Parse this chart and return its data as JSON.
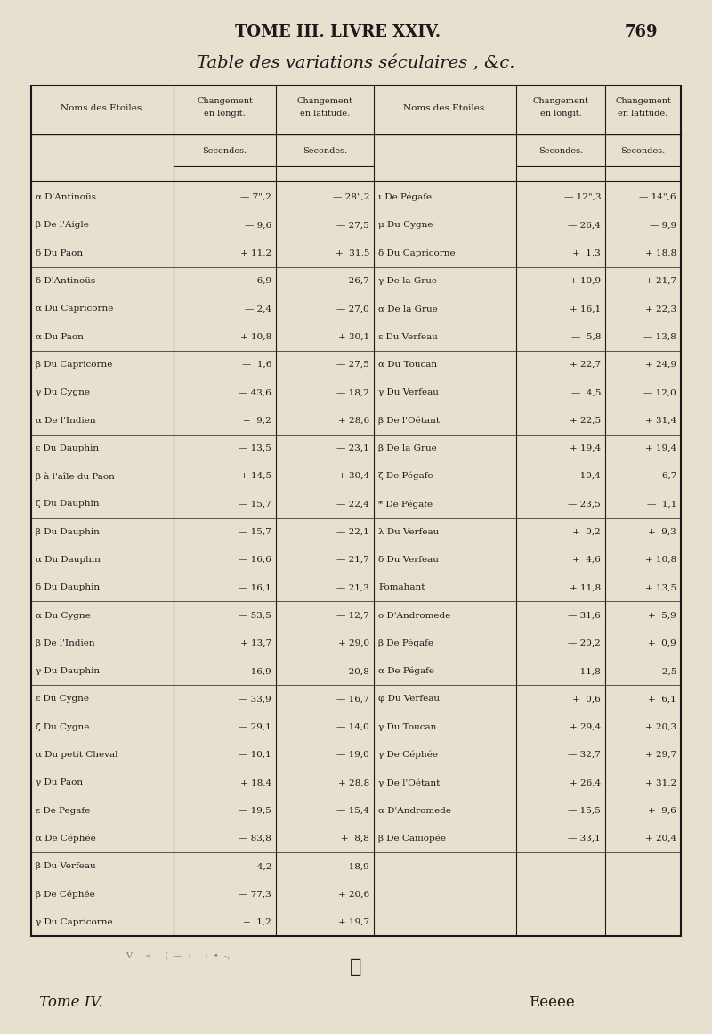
{
  "page_header": "TOME III. LIVRE XXIV.",
  "page_number": "769",
  "table_title": "Table des variations séculaires , &c.",
  "bg_color": "#e8e0ce",
  "text_color": "#1a1a1a",
  "col_headers": [
    "Noms des Etoiles.",
    "Changement\nen longit.",
    "Changement\nen latitude.",
    "Noms des Etoiles.",
    "Changement\nen longit.",
    "Changement\nen latitude."
  ],
  "col_subheaders": [
    "",
    "Secondes.",
    "Secondes.",
    "",
    "Secondes.",
    "Secondes."
  ],
  "groups": [
    {
      "left": [
        [
          "α D'Antinoüs",
          "— 7\",2",
          "— 28\",2"
        ],
        [
          "β De l'Aigle",
          "— 9,6",
          "— 27,5"
        ],
        [
          "δ Du Paon",
          "+ 11,2",
          "+  31,5"
        ]
      ],
      "right": [
        [
          "ι De Pégafe",
          "— 12\",3",
          "— 14\",6"
        ],
        [
          "μ Du Cygne",
          "— 26,4",
          "— 9,9"
        ],
        [
          "δ Du Capricorne",
          "+  1,3",
          "+ 18,8"
        ]
      ]
    },
    {
      "left": [
        [
          "δ D'Antinoüs",
          "— 6,9",
          "— 26,7"
        ],
        [
          "α Du Capricorne",
          "— 2,4",
          "— 27,0"
        ],
        [
          "α Du Paon",
          "+ 10,8",
          "+ 30,1"
        ]
      ],
      "right": [
        [
          "γ De la Grue",
          "+ 10,9",
          "+ 21,7"
        ],
        [
          "α De la Grue",
          "+ 16,1",
          "+ 22,3"
        ],
        [
          "ε Du Verfeau",
          "—  5,8",
          "— 13,8"
        ]
      ]
    },
    {
      "left": [
        [
          "β Du Capricorne",
          "—  1,6",
          "— 27,5"
        ],
        [
          "γ Du Cygne",
          "— 43,6",
          "— 18,2"
        ],
        [
          "α De l'Indien",
          "+  9,2",
          "+ 28,6"
        ]
      ],
      "right": [
        [
          "α Du Toucan",
          "+ 22,7",
          "+ 24,9"
        ],
        [
          "γ Du Verfeau",
          "—  4,5",
          "— 12,0"
        ],
        [
          "β De l'Oétant",
          "+ 22,5",
          "+ 31,4"
        ]
      ]
    },
    {
      "left": [
        [
          "ε Du Dauphin",
          "— 13,5",
          "— 23,1"
        ],
        [
          "β à l'aîle du Paon",
          "+ 14,5",
          "+ 30,4"
        ],
        [
          "ζ Du Dauphin",
          "— 15,7",
          "— 22,4"
        ]
      ],
      "right": [
        [
          "β De la Grue",
          "+ 19,4",
          "+ 19,4"
        ],
        [
          "ζ De Pégafe",
          "— 10,4",
          "—  6,7"
        ],
        [
          "* De Pégafe",
          "— 23,5",
          "—  1,1"
        ]
      ]
    },
    {
      "left": [
        [
          "β Du Dauphin",
          "— 15,7",
          "— 22,1"
        ],
        [
          "α Du Dauphin",
          "— 16,6",
          "— 21,7"
        ],
        [
          "δ Du Dauphin",
          "— 16,1",
          "— 21,3"
        ]
      ],
      "right": [
        [
          "λ Du Verfeau",
          "+  0,2",
          "+  9,3"
        ],
        [
          "δ Du Verfeau",
          "+  4,6",
          "+ 10,8"
        ],
        [
          "Fomahant",
          "+ 11,8",
          "+ 13,5"
        ]
      ]
    },
    {
      "left": [
        [
          "α Du Cygne",
          "— 53,5",
          "— 12,7"
        ],
        [
          "β De l'Indien",
          "+ 13,7",
          "+ 29,0"
        ],
        [
          "γ Du Dauphin",
          "— 16,9",
          "— 20,8"
        ]
      ],
      "right": [
        [
          "ο D'Andromede",
          "— 31,6",
          "+  5,9"
        ],
        [
          "β De Pégafe",
          "— 20,2",
          "+  0,9"
        ],
        [
          "α De Pégafe",
          "— 11,8",
          "—  2,5"
        ]
      ]
    },
    {
      "left": [
        [
          "ε Du Cygne",
          "— 33,9",
          "— 16,7"
        ],
        [
          "ζ Du Cygne",
          "— 29,1",
          "— 14,0"
        ],
        [
          "α Du petit Cheval",
          "— 10,1",
          "— 19,0"
        ]
      ],
      "right": [
        [
          "φ Du Verfeau",
          "+  0,6",
          "+  6,1"
        ],
        [
          "γ Du Toucan",
          "+ 29,4",
          "+ 20,3"
        ],
        [
          "γ De Céphée",
          "— 32,7",
          "+ 29,7"
        ]
      ]
    },
    {
      "left": [
        [
          "γ Du Paon",
          "+ 18,4",
          "+ 28,8"
        ],
        [
          "ε De Pegafe",
          "— 19,5",
          "— 15,4"
        ],
        [
          "α De Céphée",
          "— 83,8",
          "+  8,8"
        ]
      ],
      "right": [
        [
          "γ De l'Oétant",
          "+ 26,4",
          "+ 31,2"
        ],
        [
          "α D'Andromede",
          "— 15,5",
          "+  9,6"
        ],
        [
          "β De Caïïiopée",
          "— 33,1",
          "+ 20,4"
        ]
      ]
    },
    {
      "left": [
        [
          "β Du Verfeau",
          "—  4,2",
          "— 18,9"
        ],
        [
          "β De Céphée",
          "— 77,3",
          "+ 20,6"
        ],
        [
          "γ Du Capricorne",
          "+  1,2",
          "+ 19,7"
        ]
      ],
      "right": [
        [
          "",
          "",
          ""
        ],
        [
          "",
          "",
          ""
        ],
        [
          "",
          "",
          ""
        ]
      ]
    }
  ],
  "footer_symbol": "✤",
  "footer_left": "Tome IV.",
  "footer_right": "Eeeee"
}
